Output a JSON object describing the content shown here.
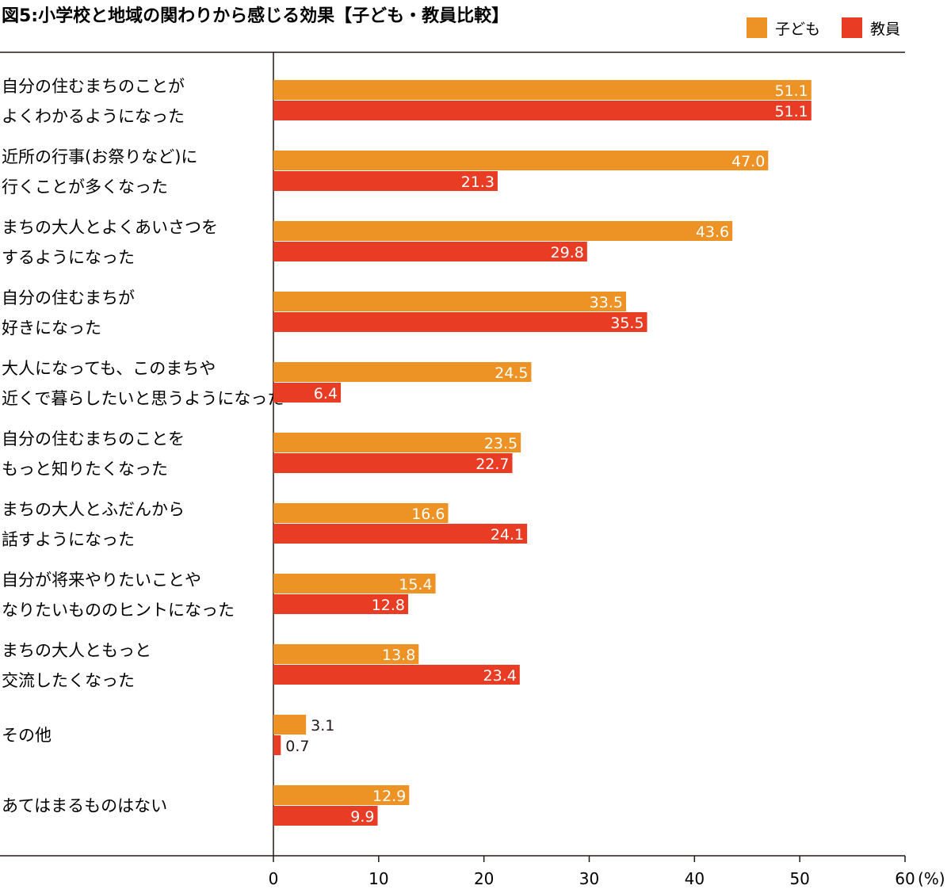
{
  "chart_data": {
    "type": "bar",
    "orientation": "horizontal",
    "title": "図5:小学校と地域の関わりから感じる効果【子ども・教員比較】",
    "unit": "(%)",
    "xlim": [
      0,
      60
    ],
    "xticks": [
      0,
      10,
      20,
      30,
      40,
      50,
      60
    ],
    "legend_position": "top-right",
    "categories": [
      [
        "自分の住むまちのことが",
        "よくわかるようになった"
      ],
      [
        "近所の行事(お祭りなど)に",
        "行くことが多くなった"
      ],
      [
        "まちの大人とよくあいさつを",
        "するようになった"
      ],
      [
        "自分の住むまちが",
        "好きになった"
      ],
      [
        "大人になっても、このまちや",
        "近くで暮らしたいと思うようになった"
      ],
      [
        "自分の住むまちのことを",
        "もっと知りたくなった"
      ],
      [
        "まちの大人とふだんから",
        "話すようになった"
      ],
      [
        "自分が将来やりたいことや",
        "なりたいもののヒントになった"
      ],
      [
        "まちの大人ともっと",
        "交流したくなった"
      ],
      [
        "その他"
      ],
      [
        "あてはまるものはない"
      ]
    ],
    "series": [
      {
        "name": "子ども",
        "color": "#ed9224",
        "values": [
          51.1,
          47.0,
          43.6,
          33.5,
          24.5,
          23.5,
          16.6,
          15.4,
          13.8,
          3.1,
          12.9
        ]
      },
      {
        "name": "教員",
        "color": "#e83d24",
        "values": [
          51.1,
          21.3,
          29.8,
          35.5,
          6.4,
          22.7,
          24.1,
          12.8,
          23.4,
          0.7,
          9.9
        ]
      }
    ]
  }
}
